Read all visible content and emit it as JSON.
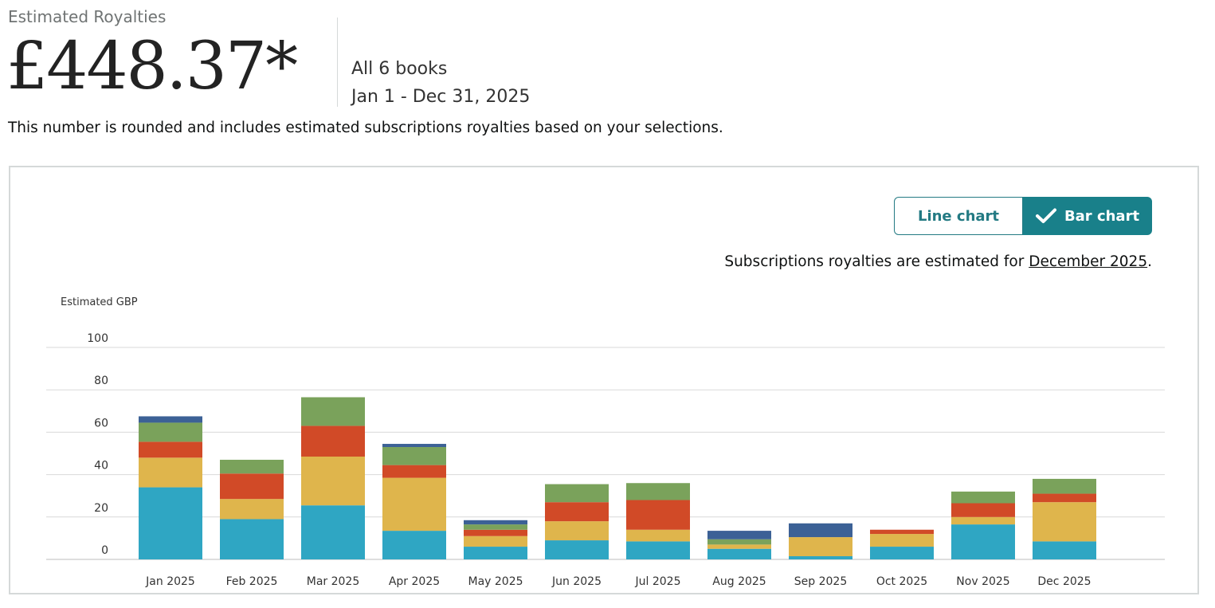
{
  "header": {
    "label": "Estimated Royalties",
    "amount": "£448.37*",
    "scope": "All 6 books",
    "period": "Jan 1 - Dec 31, 2025",
    "disclaimer": "This number is rounded and includes estimated subscriptions royalties based on your selections."
  },
  "toggle": {
    "line_label": "Line chart",
    "bar_label": "Bar chart",
    "selected": "Bar chart"
  },
  "note": {
    "text": "Subscriptions royalties are estimated for ",
    "link": "December 2025",
    "suffix": "."
  },
  "colors": {
    "teal": "#2fa6c3",
    "yellow": "#dfb54c",
    "red": "#d14a27",
    "green": "#7aa25b",
    "navy": "#3c6196",
    "accent": "#19808a"
  },
  "chart_data": {
    "type": "bar",
    "stacked": true,
    "ylabel": "Estimated GBP",
    "ylim": [
      0,
      100
    ],
    "yticks": [
      0,
      20,
      40,
      60,
      80,
      100
    ],
    "grid": true,
    "categories": [
      "Jan 2025",
      "Feb 2025",
      "Mar 2025",
      "Apr 2025",
      "May 2025",
      "Jun 2025",
      "Jul 2025",
      "Aug 2025",
      "Sep 2025",
      "Oct 2025",
      "Nov 2025",
      "Dec 2025"
    ],
    "series": [
      {
        "color": "#2fa6c3",
        "values": [
          34,
          19,
          25.5,
          13.5,
          6,
          9,
          8.5,
          5,
          1.5,
          6,
          16.5,
          8.5
        ]
      },
      {
        "color": "#dfb54c",
        "values": [
          14,
          9.5,
          23,
          25,
          5,
          9,
          5.5,
          2,
          9,
          6,
          3.5,
          18.5
        ]
      },
      {
        "color": "#d14a27",
        "values": [
          7.5,
          12,
          14.5,
          6,
          3,
          9,
          14,
          0,
          0,
          2,
          6.5,
          4
        ]
      },
      {
        "color": "#7aa25b",
        "values": [
          9,
          6.5,
          13.5,
          8.5,
          2.5,
          8.5,
          8,
          2.5,
          0,
          0,
          5.5,
          7
        ]
      },
      {
        "color": "#3c6196",
        "values": [
          3,
          0,
          0,
          1.5,
          2,
          0,
          0,
          4,
          6.5,
          0,
          0,
          0
        ]
      }
    ]
  }
}
